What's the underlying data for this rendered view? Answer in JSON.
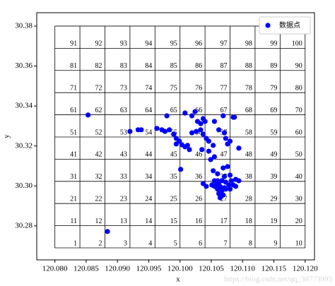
{
  "chart_data": {
    "type": "scatter",
    "x_label": "x",
    "y_label": "y",
    "watermark": "https://blog.csdn.net/qq_38773993",
    "xlim": [
      120.0771,
      120.1215
    ],
    "ylim": [
      30.263,
      30.3867
    ],
    "xticks": [
      {
        "value": 120.08,
        "label": "120.080"
      },
      {
        "value": 120.085,
        "label": "120.085"
      },
      {
        "value": 120.09,
        "label": "120.090"
      },
      {
        "value": 120.095,
        "label": "120.095"
      },
      {
        "value": 120.1,
        "label": "120.100"
      },
      {
        "value": 120.105,
        "label": "120.105"
      },
      {
        "value": 120.11,
        "label": "120.110"
      },
      {
        "value": 120.115,
        "label": "120.115"
      },
      {
        "value": 120.12,
        "label": "120.120"
      }
    ],
    "yticks": [
      30.28,
      {
        "value": 30.3,
        "label": "30.30"
      },
      30.32,
      30.34,
      30.36,
      30.38
    ],
    "legend": "upper right",
    "cells": {
      "x": [
        120.08,
        120.084,
        120.088,
        120.092,
        120.096,
        120.1,
        120.104,
        120.108,
        120.112,
        120.116,
        120.12
      ],
      "y": [
        30.269,
        30.2801,
        30.2912,
        30.3023,
        30.3134,
        30.3245,
        30.3356,
        30.3467,
        30.3578,
        30.3689,
        30.38
      ],
      "labels": [
        1,
        2,
        3,
        4,
        5,
        6,
        7,
        8,
        9,
        10,
        11,
        12,
        13,
        14,
        15,
        16,
        17,
        18,
        19,
        20,
        21,
        22,
        23,
        24,
        25,
        26,
        27,
        28,
        29,
        30,
        31,
        32,
        33,
        34,
        35,
        36,
        37,
        38,
        39,
        40,
        41,
        42,
        43,
        44,
        45,
        46,
        47,
        48,
        49,
        50,
        51,
        52,
        53,
        54,
        55,
        56,
        57,
        58,
        59,
        60,
        61,
        62,
        63,
        64,
        65,
        66,
        67,
        68,
        69,
        70,
        71,
        72,
        73,
        74,
        75,
        76,
        77,
        78,
        79,
        80,
        81,
        82,
        83,
        84,
        85,
        86,
        87,
        88,
        89,
        90,
        91,
        92,
        93,
        94,
        95,
        96,
        97,
        98,
        99,
        100
      ]
    },
    "series": [
      {
        "name": "数据点",
        "color": "#0000ff",
        "x": [
          120.0853,
          120.0884,
          120.092,
          120.0933,
          120.0938,
          120.0963,
          120.0971,
          120.0976,
          120.0979,
          120.0983,
          120.099,
          120.0994,
          120.0999,
          120.1003,
          120.1008,
          120.1012,
          120.1015,
          120.0994,
          120.1008,
          120.1019,
          120.1024,
          120.1028,
          120.1033,
          120.104,
          120.1037,
          120.1019,
          120.1026,
          120.1033,
          120.1037,
          120.1042,
          120.1046,
          120.1053,
          120.1035,
          120.1046,
          120.1062,
          120.1069,
          120.1071,
          120.1073,
          120.1076,
          120.108,
          120.1087,
          120.1094,
          120.1055,
          120.1049,
          120.1001,
          120.1037,
          120.1042,
          120.1053,
          120.106,
          120.1069,
          120.1076,
          120.108,
          120.1071,
          120.1055,
          120.1062,
          120.1067,
          120.1073,
          120.1082,
          120.1089,
          120.1094,
          120.1058,
          120.1064,
          120.1071,
          120.1078,
          120.1085,
          120.106,
          120.1067,
          120.1073,
          120.108,
          120.1062,
          120.1069,
          120.1055,
          120.1051,
          120.1089,
          120.1064,
          120.1085,
          120.1055,
          120.106
        ],
        "values": [
          30.3355,
          30.2772,
          30.3273,
          30.3281,
          30.3281,
          30.3288,
          30.3281,
          30.3273,
          30.3351,
          30.3281,
          30.3259,
          30.3238,
          30.3224,
          30.3206,
          30.3196,
          30.3203,
          30.3182,
          30.321,
          30.3365,
          30.3351,
          30.3372,
          30.3323,
          30.3312,
          30.3323,
          30.3337,
          30.3266,
          30.3273,
          30.3281,
          30.3259,
          30.3238,
          30.3224,
          30.3203,
          30.3182,
          30.3174,
          30.3281,
          30.3351,
          30.3266,
          30.3238,
          30.321,
          30.3224,
          30.3344,
          30.3189,
          30.3146,
          30.3132,
          30.3083,
          30.3012,
          30.2998,
          30.3076,
          30.3061,
          30.309,
          30.3097,
          30.3054,
          30.3047,
          30.3026,
          30.3019,
          30.3026,
          30.3019,
          30.3026,
          30.3033,
          30.3026,
          30.3005,
          30.2998,
          30.2991,
          30.3005,
          30.3005,
          30.2984,
          30.2977,
          30.2984,
          30.2984,
          30.2962,
          30.2955,
          30.2998,
          30.3005,
          30.2998,
          30.2941,
          30.3344,
          30.3323,
          30.3026
        ]
      }
    ]
  }
}
